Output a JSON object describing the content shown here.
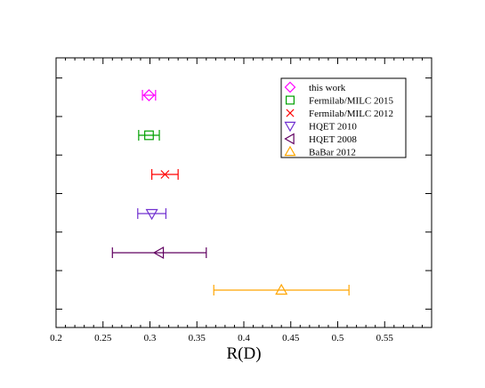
{
  "chart_data": {
    "type": "scatter",
    "title": "",
    "xlabel": "R(D)",
    "ylabel": "",
    "xlim": [
      0.2,
      0.6
    ],
    "x_ticks": [
      "0.2",
      "0.25",
      "0.3",
      "0.35",
      "0.4",
      "0.45",
      "0.5",
      "0.55"
    ],
    "grid": false,
    "legend_position": "top-right",
    "series": [
      {
        "name": "this work",
        "marker": "diamond",
        "color": "#ff00ff",
        "x": 0.299,
        "err": 0.007
      },
      {
        "name": "Fermilab/MILC 2015",
        "marker": "square",
        "color": "#00a000",
        "x": 0.299,
        "err": 0.011
      },
      {
        "name": "Fermilab/MILC 2012",
        "marker": "x",
        "color": "#ff0000",
        "x": 0.316,
        "err": 0.014
      },
      {
        "name": "HQET 2010",
        "marker": "triangle-down",
        "color": "#7030d0",
        "x": 0.302,
        "err": 0.015
      },
      {
        "name": "HQET 2008",
        "marker": "triangle-left",
        "color": "#600060",
        "x": 0.31,
        "err": 0.05
      },
      {
        "name": "BaBar 2012",
        "marker": "triangle-up",
        "color": "#ffa500",
        "x": 0.44,
        "err": 0.072
      }
    ]
  }
}
